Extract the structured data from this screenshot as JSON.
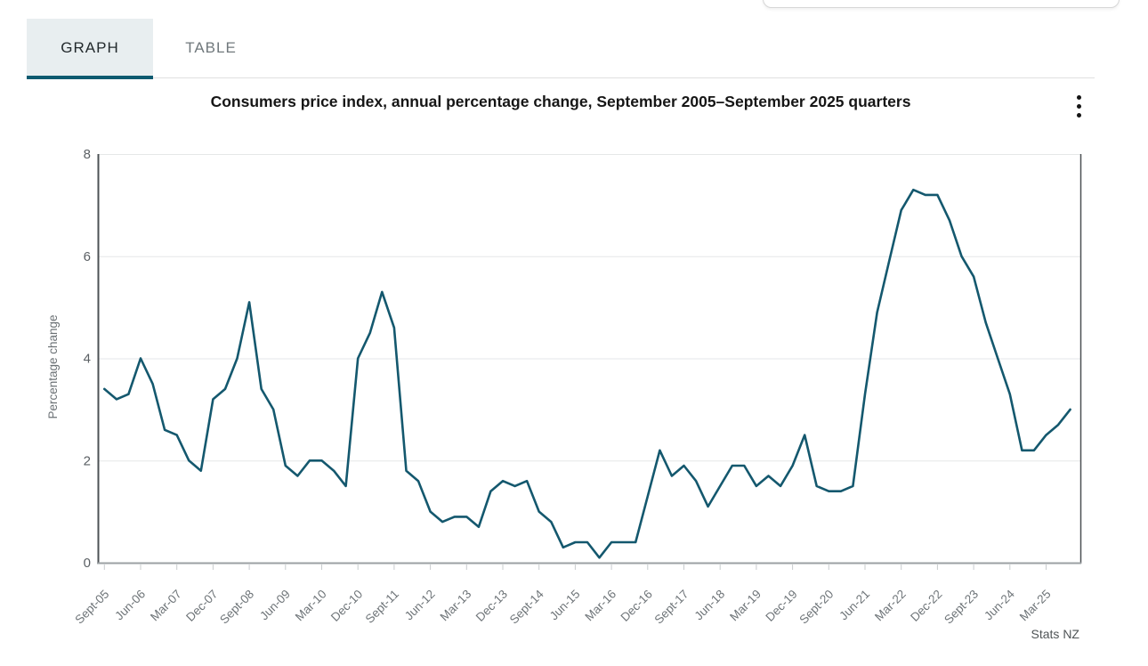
{
  "header": {
    "tabs": [
      {
        "label": "GRAPH",
        "active": true
      },
      {
        "label": "TABLE",
        "active": false
      }
    ],
    "more_options_icon": "kebab-vertical-dots"
  },
  "source": "Stats NZ",
  "colors": {
    "line": "#14586e",
    "active_tab_underline": "#0d5a70",
    "active_tab_background": "#e8eef0"
  },
  "chart_data": {
    "type": "line",
    "title": "Consumers price index, annual percentage change, September 2005–September 2025 quarters",
    "xlabel": "",
    "ylabel": "Percentage change",
    "ylim": [
      0,
      8
    ],
    "yticks": [
      0,
      2,
      4,
      6,
      8
    ],
    "grid": true,
    "legend": false,
    "line_color": "#14586e",
    "x_tick_labels": [
      "Sept-05",
      "Jun-06",
      "Mar-07",
      "Dec-07",
      "Sept-08",
      "Jun-09",
      "Mar-10",
      "Dec-10",
      "Sept-11",
      "Jun-12",
      "Mar-13",
      "Dec-13",
      "Sept-14",
      "Jun-15",
      "Mar-16",
      "Dec-16",
      "Sept-17",
      "Jun-18",
      "Mar-19",
      "Dec-19",
      "Sept-20",
      "Jun-21",
      "Mar-22",
      "Dec-22",
      "Sept-23",
      "Jun-24",
      "Mar-25"
    ],
    "x": [
      "Sept-05",
      "Dec-05",
      "Mar-06",
      "Jun-06",
      "Sept-06",
      "Dec-06",
      "Mar-07",
      "Jun-07",
      "Sept-07",
      "Dec-07",
      "Mar-08",
      "Jun-08",
      "Sept-08",
      "Dec-08",
      "Mar-09",
      "Jun-09",
      "Sept-09",
      "Dec-09",
      "Mar-10",
      "Jun-10",
      "Sept-10",
      "Dec-10",
      "Mar-11",
      "Jun-11",
      "Sept-11",
      "Dec-11",
      "Mar-12",
      "Jun-12",
      "Sept-12",
      "Dec-12",
      "Mar-13",
      "Jun-13",
      "Sept-13",
      "Dec-13",
      "Mar-14",
      "Jun-14",
      "Sept-14",
      "Dec-14",
      "Mar-15",
      "Jun-15",
      "Sept-15",
      "Dec-15",
      "Mar-16",
      "Jun-16",
      "Sept-16",
      "Dec-16",
      "Mar-17",
      "Jun-17",
      "Sept-17",
      "Dec-17",
      "Mar-18",
      "Jun-18",
      "Sept-18",
      "Dec-18",
      "Mar-19",
      "Jun-19",
      "Sept-19",
      "Dec-19",
      "Mar-20",
      "Jun-20",
      "Sept-20",
      "Dec-20",
      "Mar-21",
      "Jun-21",
      "Sept-21",
      "Dec-21",
      "Mar-22",
      "Jun-22",
      "Sept-22",
      "Dec-22",
      "Mar-23",
      "Jun-23",
      "Sept-23",
      "Dec-23",
      "Mar-24",
      "Jun-24",
      "Sept-24",
      "Dec-24",
      "Mar-25",
      "Jun-25",
      "Sept-25"
    ],
    "values": [
      3.4,
      3.2,
      3.3,
      4.0,
      3.5,
      2.6,
      2.5,
      2.0,
      1.8,
      3.2,
      3.4,
      4.0,
      5.1,
      3.4,
      3.0,
      1.9,
      1.7,
      2.0,
      2.0,
      1.8,
      1.5,
      4.0,
      4.5,
      5.3,
      4.6,
      1.8,
      1.6,
      1.0,
      0.8,
      0.9,
      0.9,
      0.7,
      1.4,
      1.6,
      1.5,
      1.6,
      1.0,
      0.8,
      0.3,
      0.4,
      0.4,
      0.1,
      0.4,
      0.4,
      0.4,
      1.3,
      2.2,
      1.7,
      1.9,
      1.6,
      1.1,
      1.5,
      1.9,
      1.9,
      1.5,
      1.7,
      1.5,
      1.9,
      2.5,
      1.5,
      1.4,
      1.4,
      1.5,
      3.3,
      4.9,
      5.9,
      6.9,
      7.3,
      7.2,
      7.2,
      6.7,
      6.0,
      5.6,
      4.7,
      4.0,
      3.3,
      2.2,
      2.2,
      2.5,
      2.7,
      3.0
    ]
  }
}
